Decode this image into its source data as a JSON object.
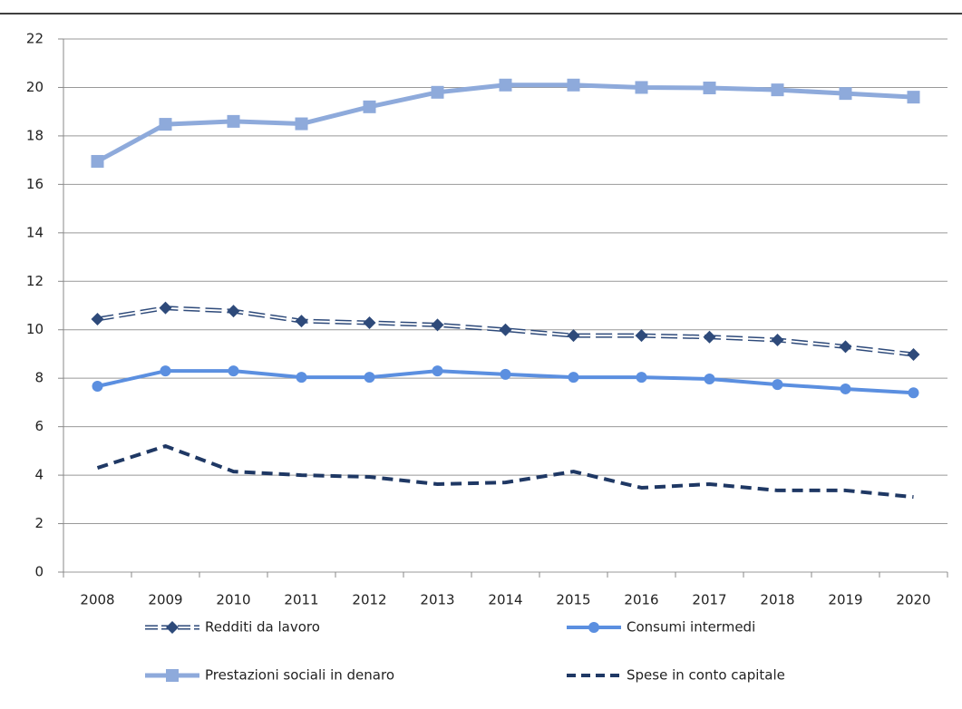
{
  "chart_data": {
    "type": "line",
    "categories": [
      "2008",
      "2009",
      "2010",
      "2011",
      "2012",
      "2013",
      "2014",
      "2015",
      "2016",
      "2017",
      "2018",
      "2019",
      "2020"
    ],
    "series": [
      {
        "name": "Redditi da lavoro",
        "color": "#2e4a7a",
        "marker": "diamond",
        "dash": "outline",
        "values": [
          10.44,
          10.9,
          10.77,
          10.36,
          10.29,
          10.2,
          10.0,
          9.76,
          9.76,
          9.7,
          9.58,
          9.3,
          8.98
        ]
      },
      {
        "name": "Consumi intermedi",
        "color": "#5b8fe0",
        "marker": "circle",
        "dash": "solid",
        "values": [
          7.67,
          8.3,
          8.3,
          8.04,
          8.04,
          8.3,
          8.16,
          8.04,
          8.04,
          7.97,
          7.74,
          7.56,
          7.4
        ]
      },
      {
        "name": "Prestazioni sociali in denaro",
        "color": "#8eaadb",
        "marker": "square",
        "dash": "solid",
        "values": [
          16.95,
          18.48,
          18.6,
          18.5,
          19.2,
          19.8,
          20.1,
          20.1,
          20.0,
          19.98,
          19.9,
          19.75,
          19.6
        ]
      },
      {
        "name": "Spese in conto capitale",
        "color": "#1f3864",
        "marker": "none",
        "dash": "dashed",
        "values": [
          4.3,
          5.2,
          4.15,
          4.0,
          3.93,
          3.63,
          3.7,
          4.15,
          3.48,
          3.63,
          3.37,
          3.37,
          3.1
        ]
      }
    ],
    "ylim": [
      0,
      22
    ],
    "yticks": [
      0,
      2,
      4,
      6,
      8,
      10,
      12,
      14,
      16,
      18,
      20,
      22
    ],
    "grid": true
  }
}
